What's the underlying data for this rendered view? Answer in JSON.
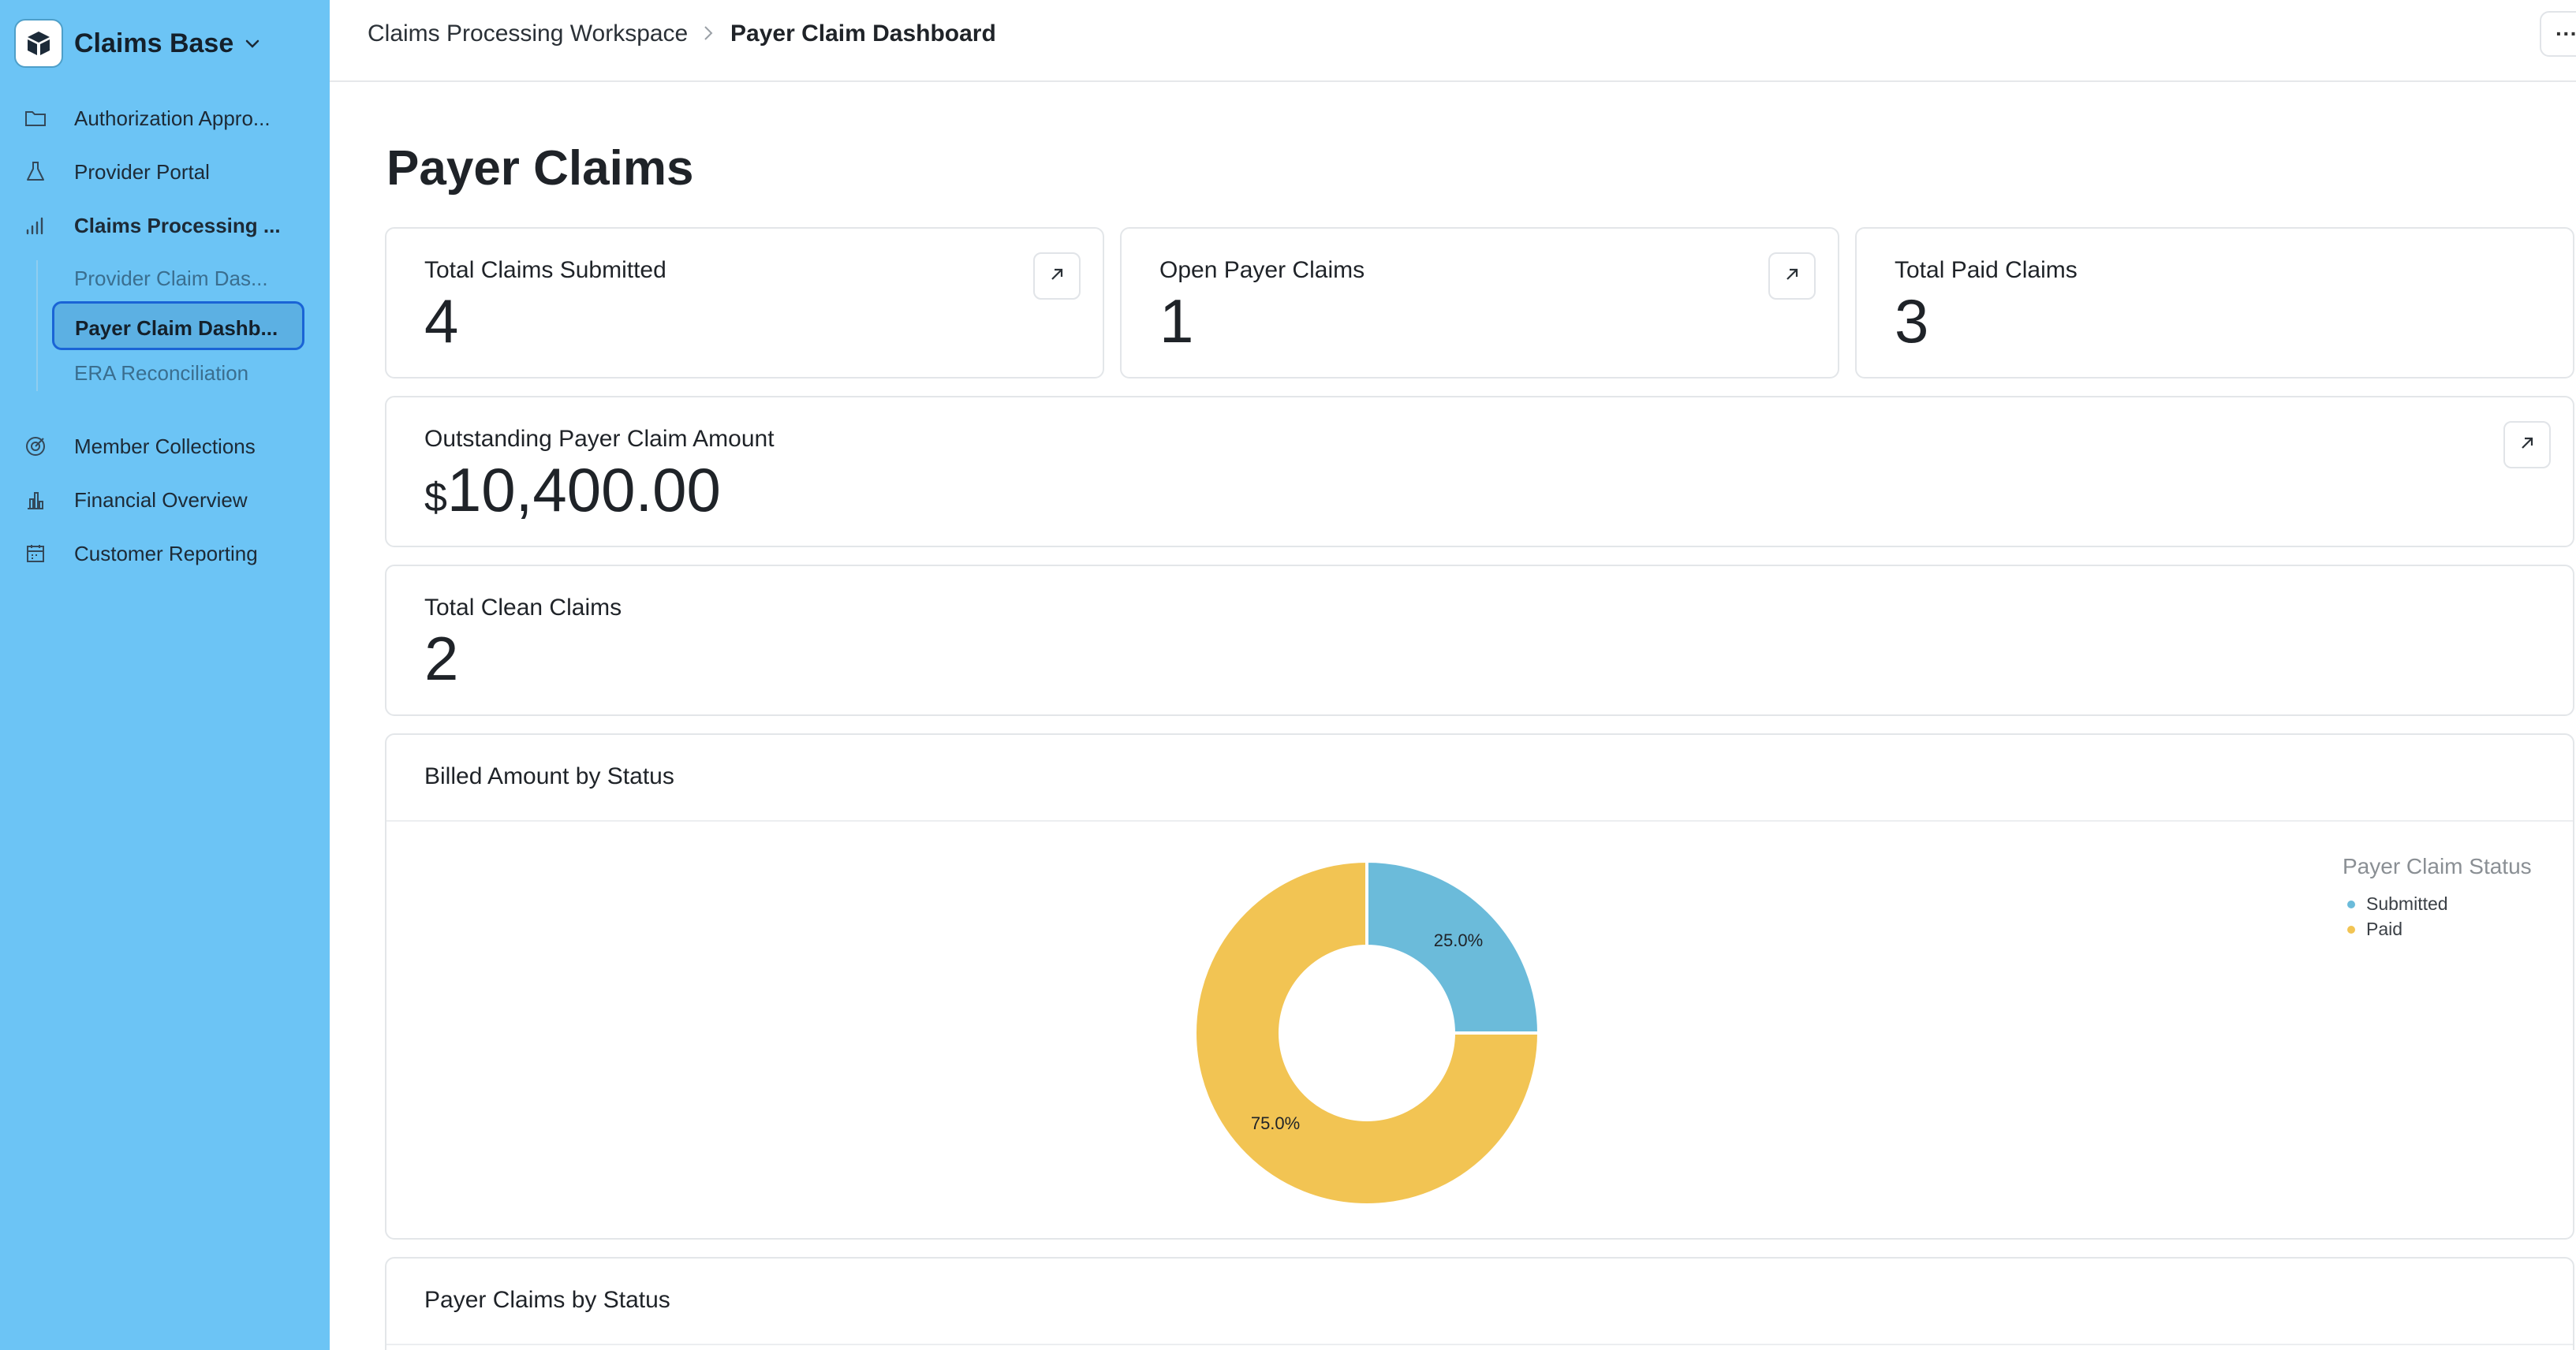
{
  "sidebar": {
    "workspace_name": "Claims Base",
    "items": [
      {
        "label": "Authorization Appro...",
        "icon": "folder-icon"
      },
      {
        "label": "Provider Portal",
        "icon": "flask-icon"
      },
      {
        "label": "Claims Processing ...",
        "icon": "signal-bars-icon"
      },
      {
        "label": "Member Collections",
        "icon": "target-icon"
      },
      {
        "label": "Financial Overview",
        "icon": "bar-chart-icon"
      },
      {
        "label": "Customer Reporting",
        "icon": "calendar-icon"
      }
    ],
    "subitems": [
      {
        "label": "Provider Claim Das..."
      },
      {
        "label": "Payer Claim Dashb..."
      },
      {
        "label": "ERA Reconciliation"
      }
    ]
  },
  "breadcrumb": {
    "parent": "Claims Processing Workspace",
    "current": "Payer Claim Dashboard"
  },
  "header": {
    "more_label": "···"
  },
  "page": {
    "title": "Payer Claims"
  },
  "metrics": {
    "total_submitted": {
      "label": "Total Claims Submitted",
      "value": "4"
    },
    "open_claims": {
      "label": "Open Payer Claims",
      "value": "1"
    },
    "paid_claims": {
      "label": "Total Paid Claims",
      "value": "3"
    },
    "outstanding": {
      "label": "Outstanding Payer Claim Amount",
      "currency": "$",
      "value": "10,400.00"
    },
    "clean_claims": {
      "label": "Total Clean Claims",
      "value": "2"
    }
  },
  "sections": {
    "billed_by_status": "Billed Amount by Status",
    "claims_by_status": "Payer Claims by Status"
  },
  "chart_data": {
    "type": "pie",
    "title": "Billed Amount by Status",
    "legend_title": "Payer Claim Status",
    "legend_position": "top-right",
    "donut": true,
    "slices": [
      {
        "name": "Submitted",
        "value": 25.0,
        "label": "25.0%",
        "color": "#6bbbda"
      },
      {
        "name": "Paid",
        "value": 75.0,
        "label": "75.0%",
        "color": "#f2c453"
      }
    ]
  }
}
